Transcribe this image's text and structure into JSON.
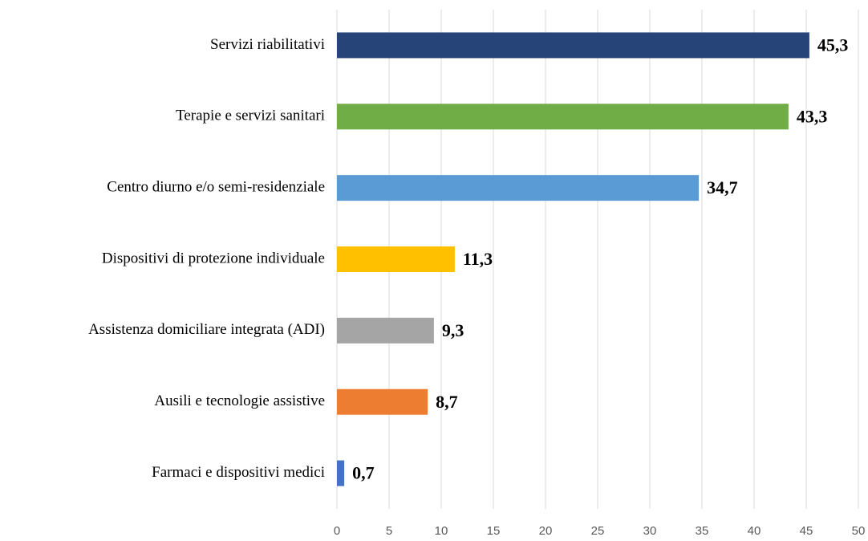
{
  "chart_data": {
    "type": "bar",
    "orientation": "horizontal",
    "categories": [
      "Servizi riabilitativi",
      "Terapie e servizi sanitari",
      "Centro diurno e/o semi-residenziale",
      "Dispositivi di protezione individuale",
      "Assistenza domiciliare integrata (ADI)",
      "Ausili e tecnologie assistive",
      "Farmaci e dispositivi medici"
    ],
    "values": [
      45.3,
      43.3,
      34.7,
      11.3,
      9.3,
      8.7,
      0.7
    ],
    "value_labels": [
      "45,3",
      "43,3",
      "34,7",
      "11,3",
      "9,3",
      "8,7",
      "0,7"
    ],
    "colors": [
      "#264478",
      "#70ad47",
      "#5b9bd5",
      "#ffc000",
      "#a5a5a5",
      "#ed7d31",
      "#4472c4"
    ],
    "xlim": [
      0,
      50
    ],
    "xticks": [
      0,
      5,
      10,
      15,
      20,
      25,
      30,
      35,
      40,
      45,
      50
    ],
    "grid": true
  }
}
